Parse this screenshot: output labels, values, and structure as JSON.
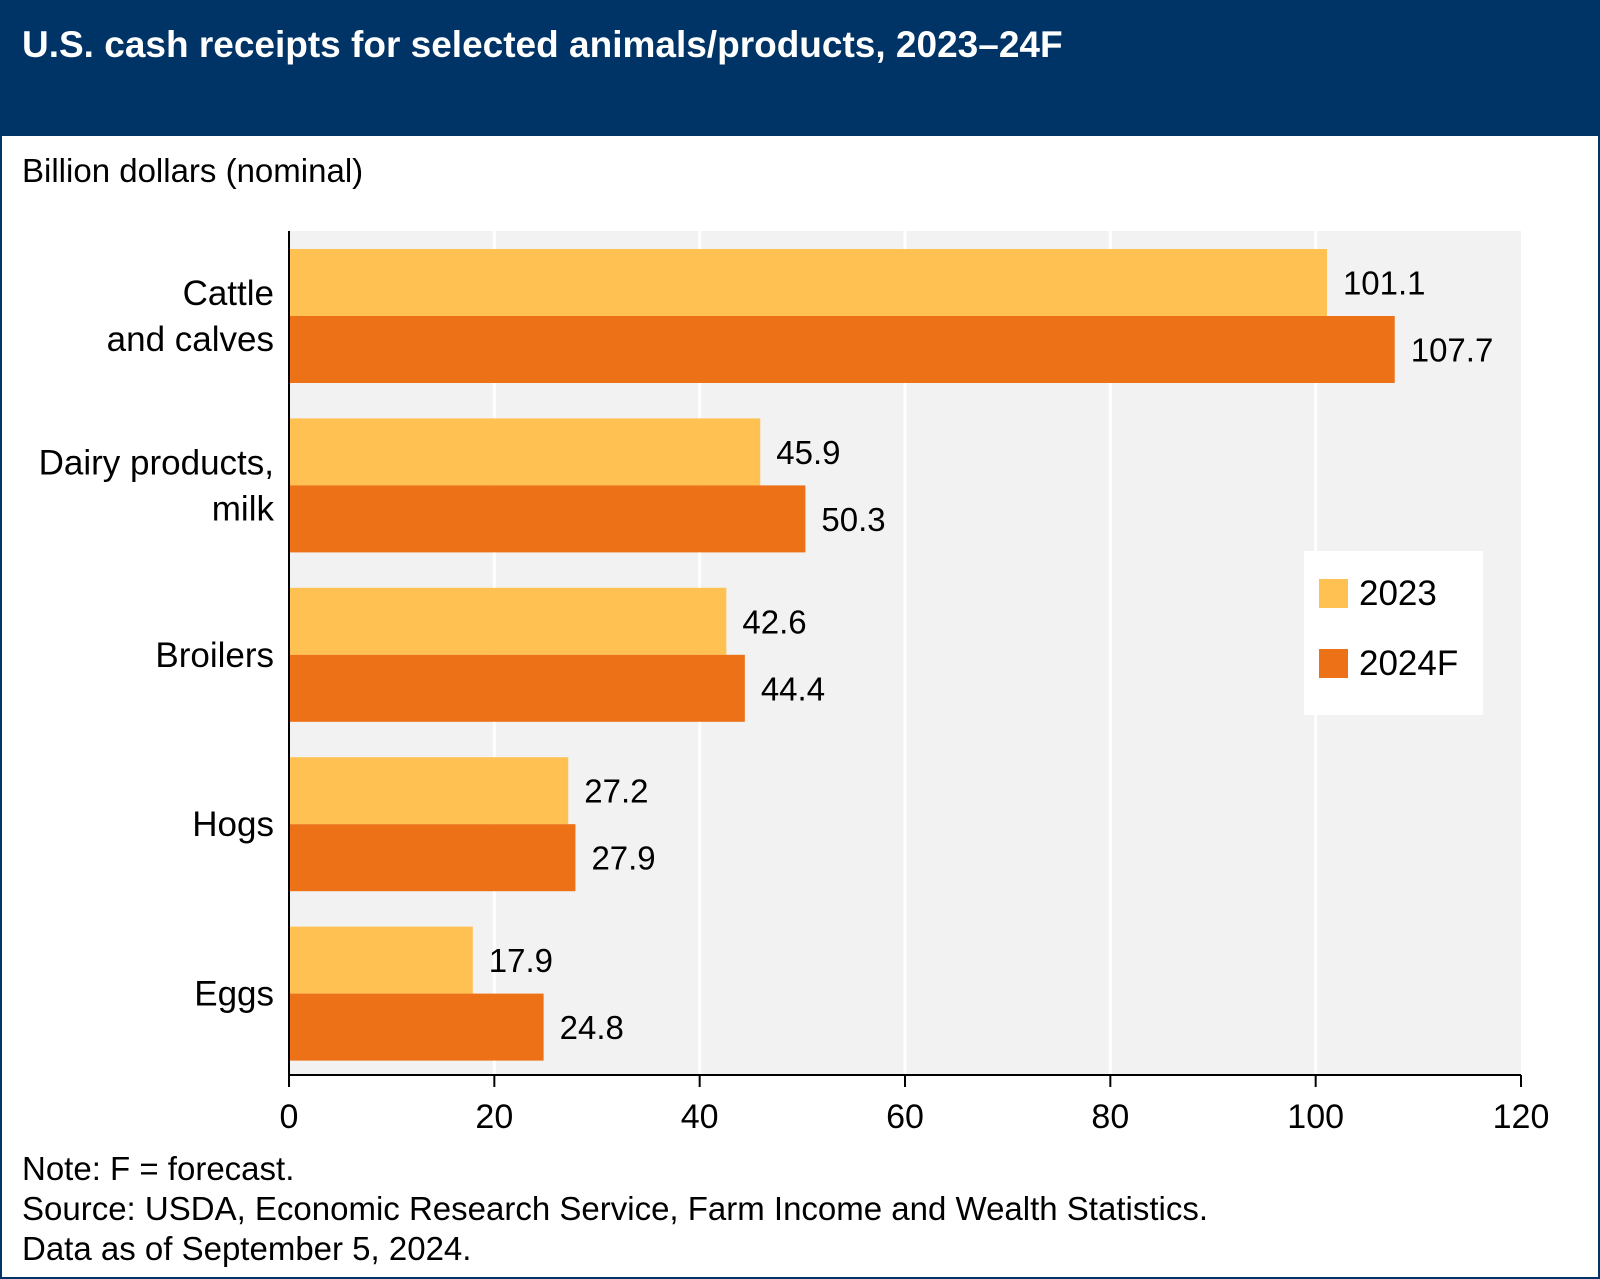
{
  "title": "U.S. cash receipts for selected animals/products, 2023–24F",
  "units_label": "Billion dollars (nominal)",
  "notes": [
    "Note: F = forecast.",
    "Source: USDA, Economic Research Service, Farm Income and Wealth Statistics.",
    "Data as of September 5, 2024."
  ],
  "colors": {
    "header": "#003366",
    "plot_background": "#f2f2f2",
    "gridline": "#ffffff",
    "series_2023": "#ffc252",
    "series_2024F": "#ec7117"
  },
  "chart_data": {
    "type": "bar",
    "orientation": "horizontal",
    "categories": [
      [
        "Cattle",
        "and calves"
      ],
      [
        "Dairy products,",
        "milk"
      ],
      [
        "Broilers"
      ],
      [
        "Hogs"
      ],
      [
        "Eggs"
      ]
    ],
    "series": [
      {
        "name": "2023",
        "values": [
          101.1,
          45.9,
          42.6,
          27.2,
          17.9
        ],
        "labels": [
          "101.1",
          "45.9",
          "42.6",
          "27.2",
          "17.9"
        ]
      },
      {
        "name": "2024F",
        "values": [
          107.7,
          50.3,
          44.4,
          27.9,
          24.8
        ],
        "labels": [
          "107.7",
          "50.3",
          "44.4",
          "27.9",
          "24.8"
        ]
      }
    ],
    "xlim": [
      0,
      120
    ],
    "xticks": [
      0,
      20,
      40,
      60,
      80,
      100,
      120
    ],
    "xtick_labels": [
      "0",
      "20",
      "40",
      "60",
      "80",
      "100",
      "120"
    ],
    "grid": true,
    "legend_position": "right"
  }
}
